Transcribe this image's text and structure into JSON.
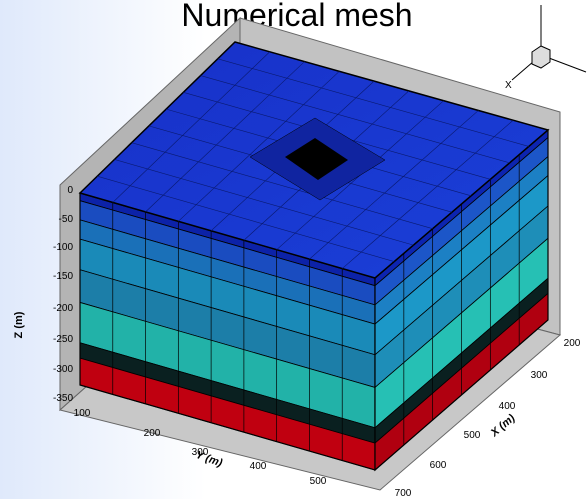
{
  "title": "Numerical mesh",
  "triad": {
    "x_label": "X"
  },
  "z_axis": {
    "label": "Z (m)",
    "ticks": [
      "0",
      "-50",
      "-100",
      "-150",
      "-200",
      "-250",
      "-300",
      "-350"
    ]
  },
  "y_axis": {
    "label": "Y (m)",
    "ticks": [
      "100",
      "200",
      "300",
      "400",
      "500"
    ]
  },
  "x_axis": {
    "label": "X (m)",
    "ticks": [
      "200",
      "300",
      "400",
      "500",
      "600",
      "700"
    ]
  }
}
